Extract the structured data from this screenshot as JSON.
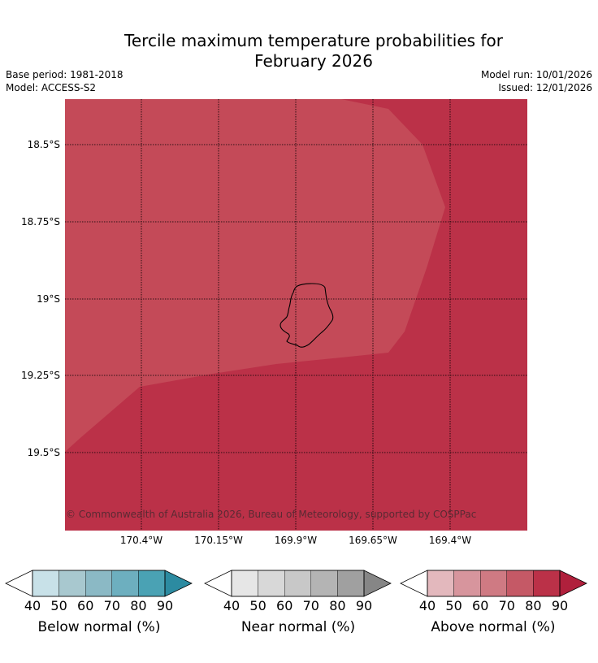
{
  "header": {
    "title_line1": "Tercile maximum temperature probabilities for",
    "title_line2": "February 2026",
    "base_period": "Base period: 1981-2018",
    "model": "Model: ACCESS-S2",
    "model_run": "Model run: 10/01/2026",
    "issued": "Issued: 12/01/2026"
  },
  "map": {
    "lat_labels": [
      "18.5°S",
      "18.75°S",
      "19°S",
      "19.25°S",
      "19.5°S"
    ],
    "lon_labels": [
      "170.4°W",
      "170.15°W",
      "169.9°W",
      "169.65°W",
      "169.4°W"
    ],
    "copyright": "© Commonwealth of Australia 2026, Bureau of Meteorology, supported by COSPPac",
    "colors": {
      "above_70_80": "#c44a58",
      "above_80_90": "#bb3148",
      "coastline": "#000000",
      "gridline": "#000000"
    }
  },
  "colorbars": [
    {
      "name": "below",
      "label": "Below normal (%)",
      "ticks": [
        "40",
        "50",
        "60",
        "70",
        "80",
        "90"
      ],
      "colors": [
        "#c8e1e8",
        "#a8c8cf",
        "#8bb9c5",
        "#6dafbf",
        "#4aa2b4",
        "#2c8ba1"
      ]
    },
    {
      "name": "near",
      "label": "Near normal (%)",
      "ticks": [
        "40",
        "50",
        "60",
        "70",
        "80",
        "90"
      ],
      "colors": [
        "#e6e6e6",
        "#d8d8d8",
        "#c8c8c8",
        "#b4b4b4",
        "#a0a0a0",
        "#868686"
      ]
    },
    {
      "name": "above",
      "label": "Above normal (%)",
      "ticks": [
        "40",
        "50",
        "60",
        "70",
        "80",
        "90"
      ],
      "colors": [
        "#e3b8bd",
        "#d7959d",
        "#cf7a83",
        "#c55966",
        "#bb3148",
        "#b0203c"
      ]
    }
  ]
}
